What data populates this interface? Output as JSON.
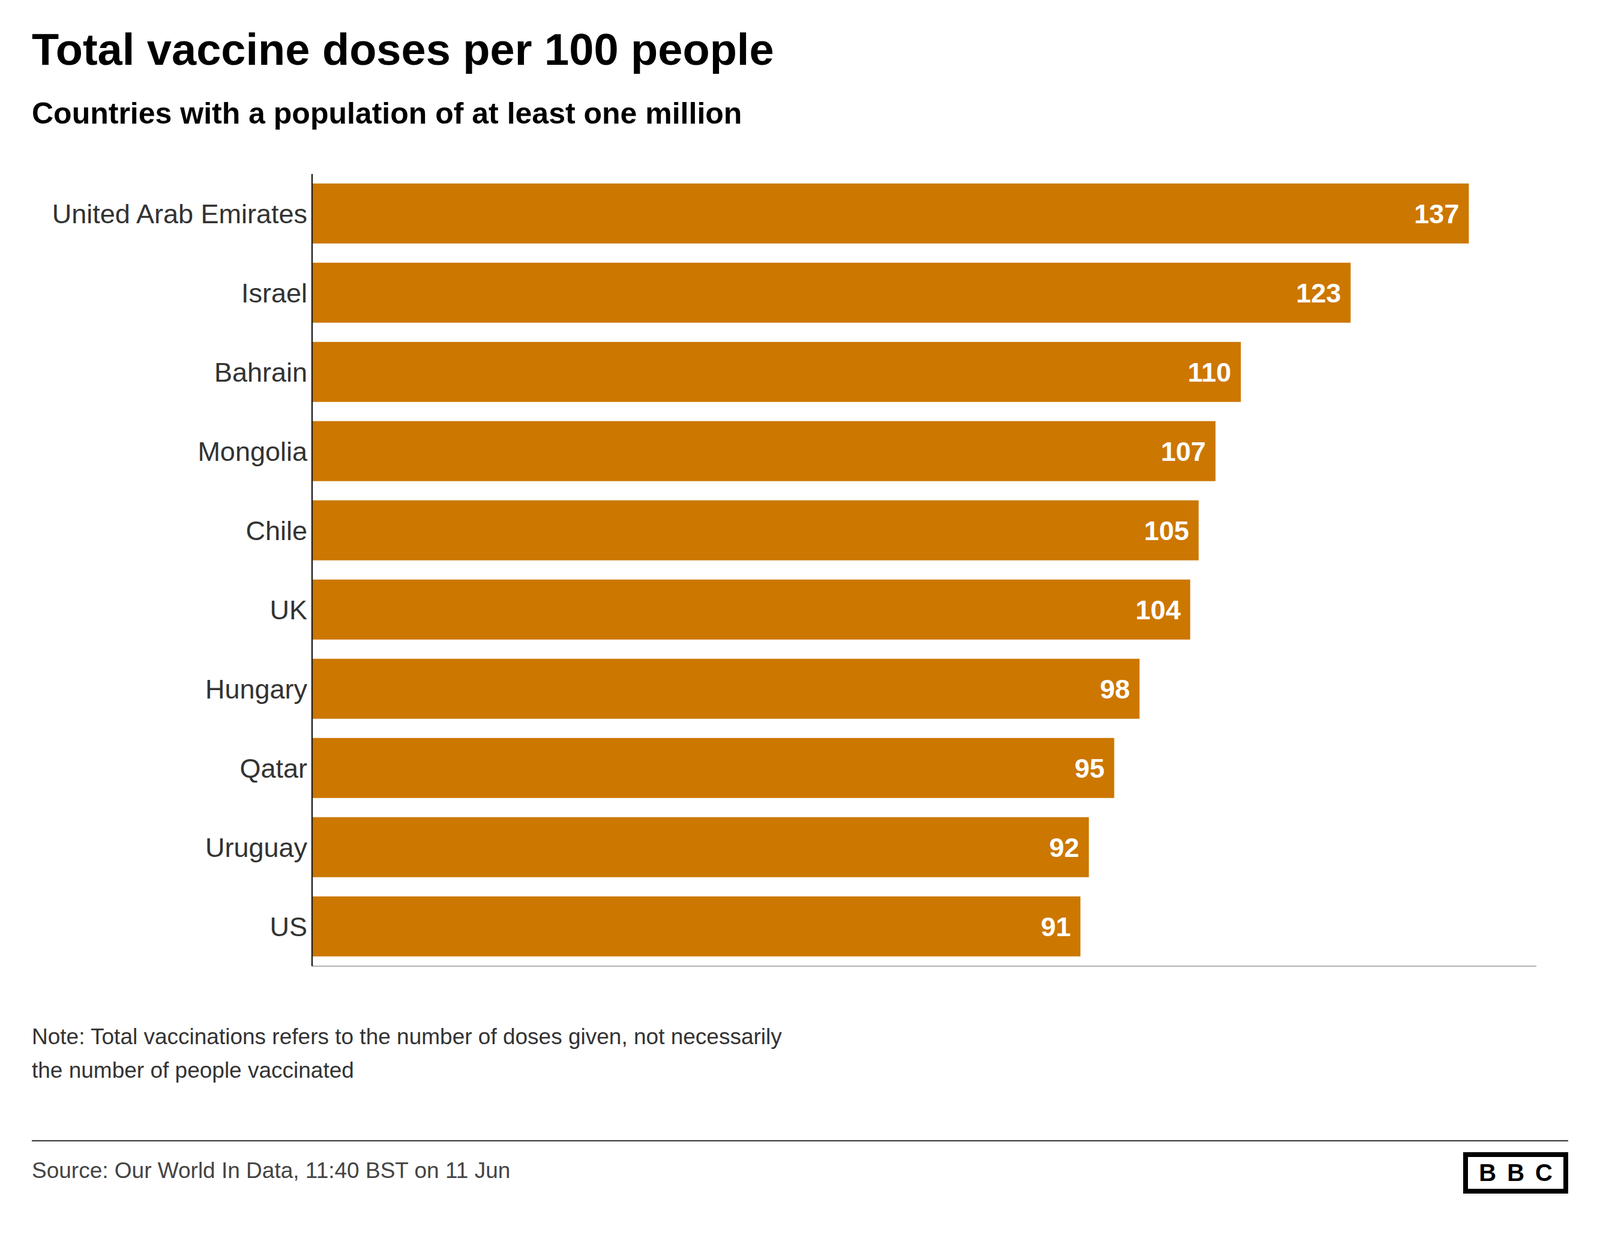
{
  "chart_data": {
    "type": "bar",
    "orientation": "horizontal",
    "title": "Total vaccine doses per 100 people",
    "subtitle": "Countries with a population of at least one million",
    "annotations": [
      "Note: Total vaccinations refers to the number of doses given, not necessarily\nthe number of people vaccinated",
      "Source: Our World In Data, 11:40 BST on 11 Jun",
      "BBC"
    ],
    "categories": [
      "United Arab Emirates",
      "Israel",
      "Bahrain",
      "Mongolia",
      "Chile",
      "UK",
      "Hungary",
      "Qatar",
      "Uruguay",
      "US"
    ],
    "values": [
      137,
      123,
      110,
      107,
      105,
      104,
      98,
      95,
      92,
      91
    ],
    "color": "#CC7700",
    "xlim": [
      0,
      145
    ],
    "data_labels": true,
    "tick_labels": "y",
    "grid": false
  }
}
